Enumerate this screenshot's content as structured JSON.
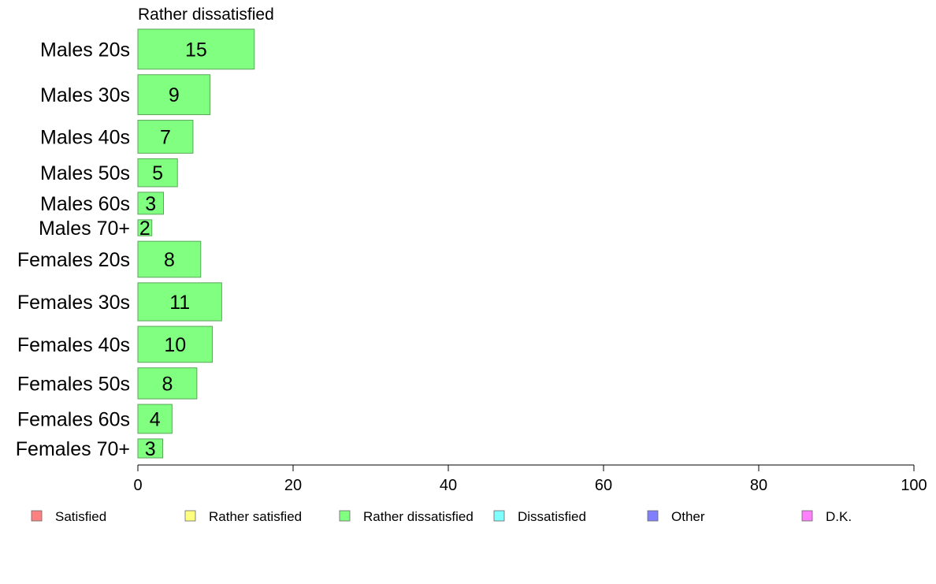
{
  "chart_data": {
    "type": "bar",
    "orientation": "horizontal",
    "title": "Rather dissatisfied",
    "categories": [
      "Males 20s",
      "Males 30s",
      "Males 40s",
      "Males 50s",
      "Males 60s",
      "Males 70+",
      "Females 20s",
      "Females 30s",
      "Females 40s",
      "Females 50s",
      "Females 60s",
      "Females 70+"
    ],
    "series": [
      {
        "name": "Rather dissatisfied",
        "color": "#80ff80",
        "values": [
          15,
          9.3,
          7.1,
          5.1,
          3.3,
          1.8,
          8.1,
          10.8,
          9.6,
          7.6,
          4.4,
          3.2
        ],
        "labels": [
          "15",
          "9",
          "7",
          "5",
          "3",
          "2",
          "8",
          "11",
          "10",
          "8",
          "4",
          "3"
        ]
      }
    ],
    "group_weights": [
      40,
      40,
      33,
      28,
      22,
      16,
      36,
      38,
      36,
      31,
      29,
      19
    ],
    "xlim": [
      0,
      100
    ],
    "x_ticks": [
      "0",
      "20",
      "40",
      "60",
      "80",
      "100"
    ],
    "grid": false,
    "legend_position": "bottom",
    "legend": [
      {
        "label": "Satisfied",
        "color": "#ff8080"
      },
      {
        "label": "Rather satisfied",
        "color": "#ffff80"
      },
      {
        "label": "Rather dissatisfied",
        "color": "#80ff80"
      },
      {
        "label": "Dissatisfied",
        "color": "#80ffff"
      },
      {
        "label": "Other",
        "color": "#8080ff"
      },
      {
        "label": "D.K.",
        "color": "#ff80ff"
      }
    ]
  }
}
